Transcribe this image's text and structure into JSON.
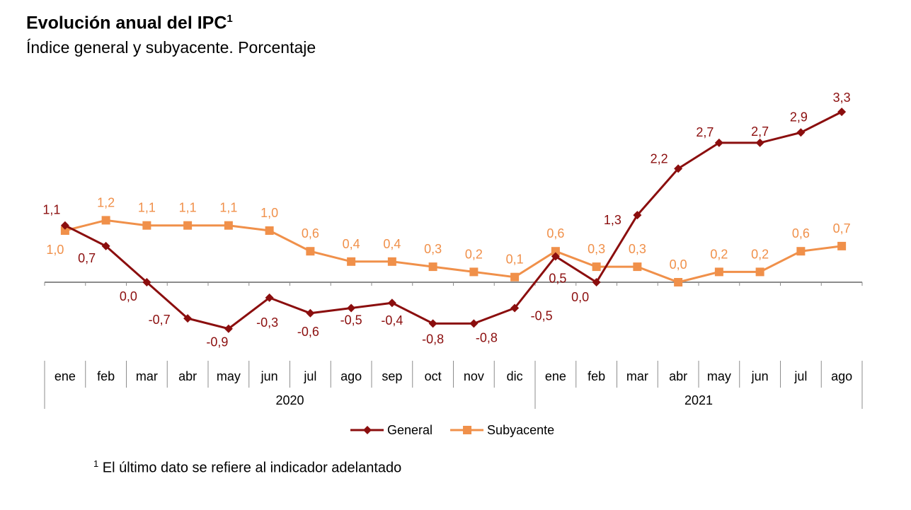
{
  "title": "Evolución anual del IPC",
  "title_sup": "1",
  "subtitle": "Índice general y subyacente. Porcentaje",
  "footnote_mark": "1",
  "footnote": "El último dato se refiere al indicador adelantado",
  "chart_data": {
    "type": "line",
    "categories": [
      "ene",
      "feb",
      "mar",
      "abr",
      "may",
      "jun",
      "jul",
      "ago",
      "sep",
      "oct",
      "nov",
      "dic",
      "ene",
      "feb",
      "mar",
      "abr",
      "may",
      "jun",
      "jul",
      "ago"
    ],
    "years": [
      {
        "label": "2020",
        "months": 12
      },
      {
        "label": "2021",
        "months": 8
      }
    ],
    "series": [
      {
        "name": "General",
        "color": "#8B0E0E",
        "marker": "diamond",
        "values": [
          1.1,
          0.7,
          0.0,
          -0.7,
          -0.9,
          -0.3,
          -0.6,
          -0.5,
          -0.4,
          -0.8,
          -0.8,
          -0.5,
          0.5,
          0.0,
          1.3,
          2.2,
          2.7,
          2.7,
          2.9,
          3.3
        ],
        "labels": [
          "1,1",
          "0,7",
          "0,0",
          "-0,7",
          "-0,9",
          "-0,3",
          "-0,6",
          "-0,5",
          "-0,4",
          "-0,8",
          "-0,8",
          "-0,5",
          "0,5",
          "0,0",
          "1,3",
          "2,2",
          "2,7",
          "2,7",
          "2,9",
          "3,3"
        ]
      },
      {
        "name": "Subyacente",
        "color": "#F0904A",
        "marker": "square",
        "values": [
          1.0,
          1.2,
          1.1,
          1.1,
          1.1,
          1.0,
          0.6,
          0.4,
          0.4,
          0.3,
          0.2,
          0.1,
          0.6,
          0.3,
          0.3,
          0.0,
          0.2,
          0.2,
          0.6,
          0.7
        ],
        "labels": [
          "1,0",
          "1,2",
          "1,1",
          "1,1",
          "1,1",
          "1,0",
          "0,6",
          "0,4",
          "0,4",
          "0,3",
          "0,2",
          "0,1",
          "0,6",
          "0,3",
          "0,3",
          "0,0",
          "0,2",
          "0,2",
          "0,6",
          "0,7"
        ]
      }
    ],
    "legend": "bottom",
    "grid": false
  }
}
